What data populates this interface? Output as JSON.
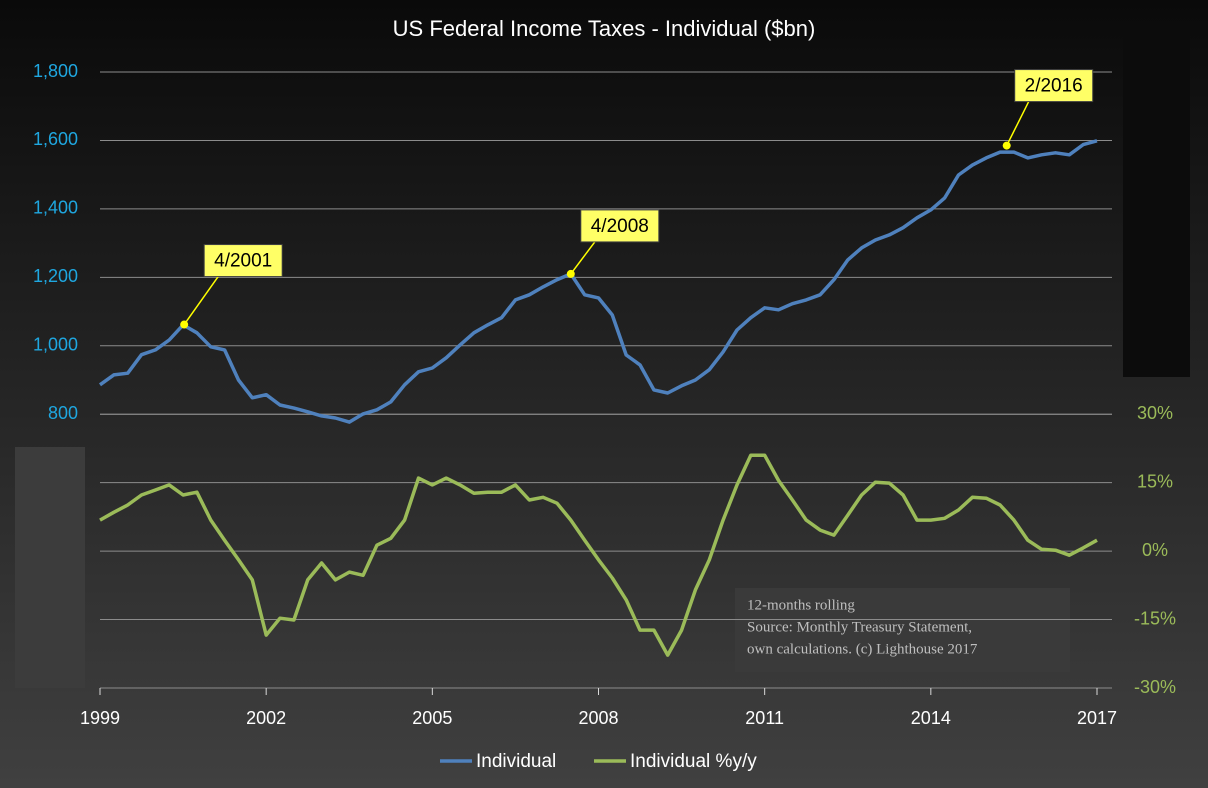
{
  "chart_data": {
    "type": "line",
    "title": "US Federal Income Taxes - Individual ($bn)",
    "x": [
      1999.0,
      1999.25,
      1999.5,
      1999.75,
      2000.0,
      2000.25,
      2000.5,
      2000.75,
      2001.0,
      2001.25,
      2001.5,
      2001.75,
      2002.0,
      2002.25,
      2002.5,
      2002.75,
      2003.0,
      2003.25,
      2003.5,
      2003.75,
      2004.0,
      2004.25,
      2004.5,
      2004.75,
      2005.0,
      2005.25,
      2005.5,
      2005.75,
      2006.0,
      2006.25,
      2006.5,
      2006.75,
      2007.0,
      2007.25,
      2007.5,
      2007.75,
      2008.0,
      2008.25,
      2008.5,
      2008.75,
      2009.0,
      2009.25,
      2009.5,
      2009.75,
      2010.0,
      2010.25,
      2010.5,
      2010.75,
      2011.0,
      2011.25,
      2011.5,
      2011.75,
      2012.0,
      2012.25,
      2012.5,
      2012.75,
      2013.0,
      2013.25,
      2013.5,
      2013.75,
      2014.0,
      2014.25,
      2014.5,
      2014.75,
      2015.0,
      2015.25,
      2015.5,
      2015.75,
      2016.0,
      2016.25,
      2016.5,
      2016.75,
      2017.0
    ],
    "series": [
      {
        "name": "Individual",
        "color": "#4f81bd",
        "axis": "y",
        "values": [
          886,
          915,
          920,
          974,
          988,
          1017,
          1061,
          1038,
          997,
          988,
          900,
          848,
          857,
          827,
          818,
          807,
          795,
          789,
          777,
          801,
          813,
          836,
          886,
          924,
          935,
          965,
          1002,
          1038,
          1061,
          1082,
          1134,
          1149,
          1172,
          1193,
          1210,
          1149,
          1140,
          1090,
          973,
          944,
          871,
          862,
          883,
          900,
          930,
          982,
          1046,
          1082,
          1111,
          1105,
          1123,
          1134,
          1149,
          1193,
          1251,
          1286,
          1309,
          1324,
          1345,
          1374,
          1397,
          1432,
          1499,
          1528,
          1549,
          1566,
          1566,
          1549,
          1558,
          1564,
          1558,
          1588,
          1599
        ]
      },
      {
        "name": "Individual %y/y",
        "color": "#9bbb59",
        "axis": "y2",
        "values": [
          6.8,
          8.5,
          10.1,
          12.3,
          13.4,
          14.5,
          12.3,
          12.9,
          6.8,
          2.4,
          -1.9,
          -6.3,
          -18.4,
          -14.7,
          -15.1,
          -6.3,
          -2.6,
          -6.3,
          -4.6,
          -5.3,
          1.3,
          2.8,
          6.8,
          16,
          14.5,
          16,
          14.5,
          12.7,
          12.9,
          12.9,
          14.5,
          11.2,
          11.8,
          10.5,
          6.8,
          2.4,
          -1.9,
          -5.9,
          -10.7,
          -17.3,
          -17.3,
          -22.8,
          -17.3,
          -8.5,
          -1.9,
          6.8,
          14.5,
          21,
          21,
          15.5,
          11.2,
          6.8,
          4.6,
          3.5,
          7.9,
          12.3,
          15.1,
          14.9,
          12.3,
          6.8,
          6.8,
          7.2,
          9.0,
          11.8,
          11.6,
          10.1,
          6.8,
          2.4,
          0.4,
          0.2,
          -0.9,
          0.7,
          2.4
        ]
      }
    ],
    "xlim": [
      1999,
      2017
    ],
    "xticks": [
      1999,
      2002,
      2005,
      2008,
      2011,
      2014,
      2017
    ],
    "ylim": [
      0,
      1800
    ],
    "yticks": [
      800,
      {
        "value": 1000,
        "label": "1,000"
      },
      {
        "value": 1200,
        "label": "1,200"
      },
      {
        "value": 1400,
        "label": "1,400"
      },
      {
        "value": 1600,
        "label": "1,600"
      },
      {
        "value": 1800,
        "label": "1,800"
      }
    ],
    "y2lim": [
      -30,
      105
    ],
    "y2ticks": [
      {
        "value": -30,
        "label": "-30%"
      },
      {
        "value": -15,
        "label": "-15%"
      },
      {
        "value": 0,
        "label": "0%"
      },
      {
        "value": 15,
        "label": "15%"
      },
      {
        "value": 30,
        "label": "30%"
      }
    ],
    "grid": true,
    "legend": "bottom",
    "annotations": [
      {
        "label": "4/2001",
        "x": 2000.52,
        "y": 1062
      },
      {
        "label": "4/2008",
        "x": 2007.5,
        "y": 1210
      },
      {
        "label": "2/2016",
        "x": 2015.37,
        "y": 1585
      }
    ],
    "notes": [
      "12-months rolling",
      "Source: Monthly Treasury Statement,",
      "own calculations. (c) Lighthouse 2017"
    ]
  }
}
